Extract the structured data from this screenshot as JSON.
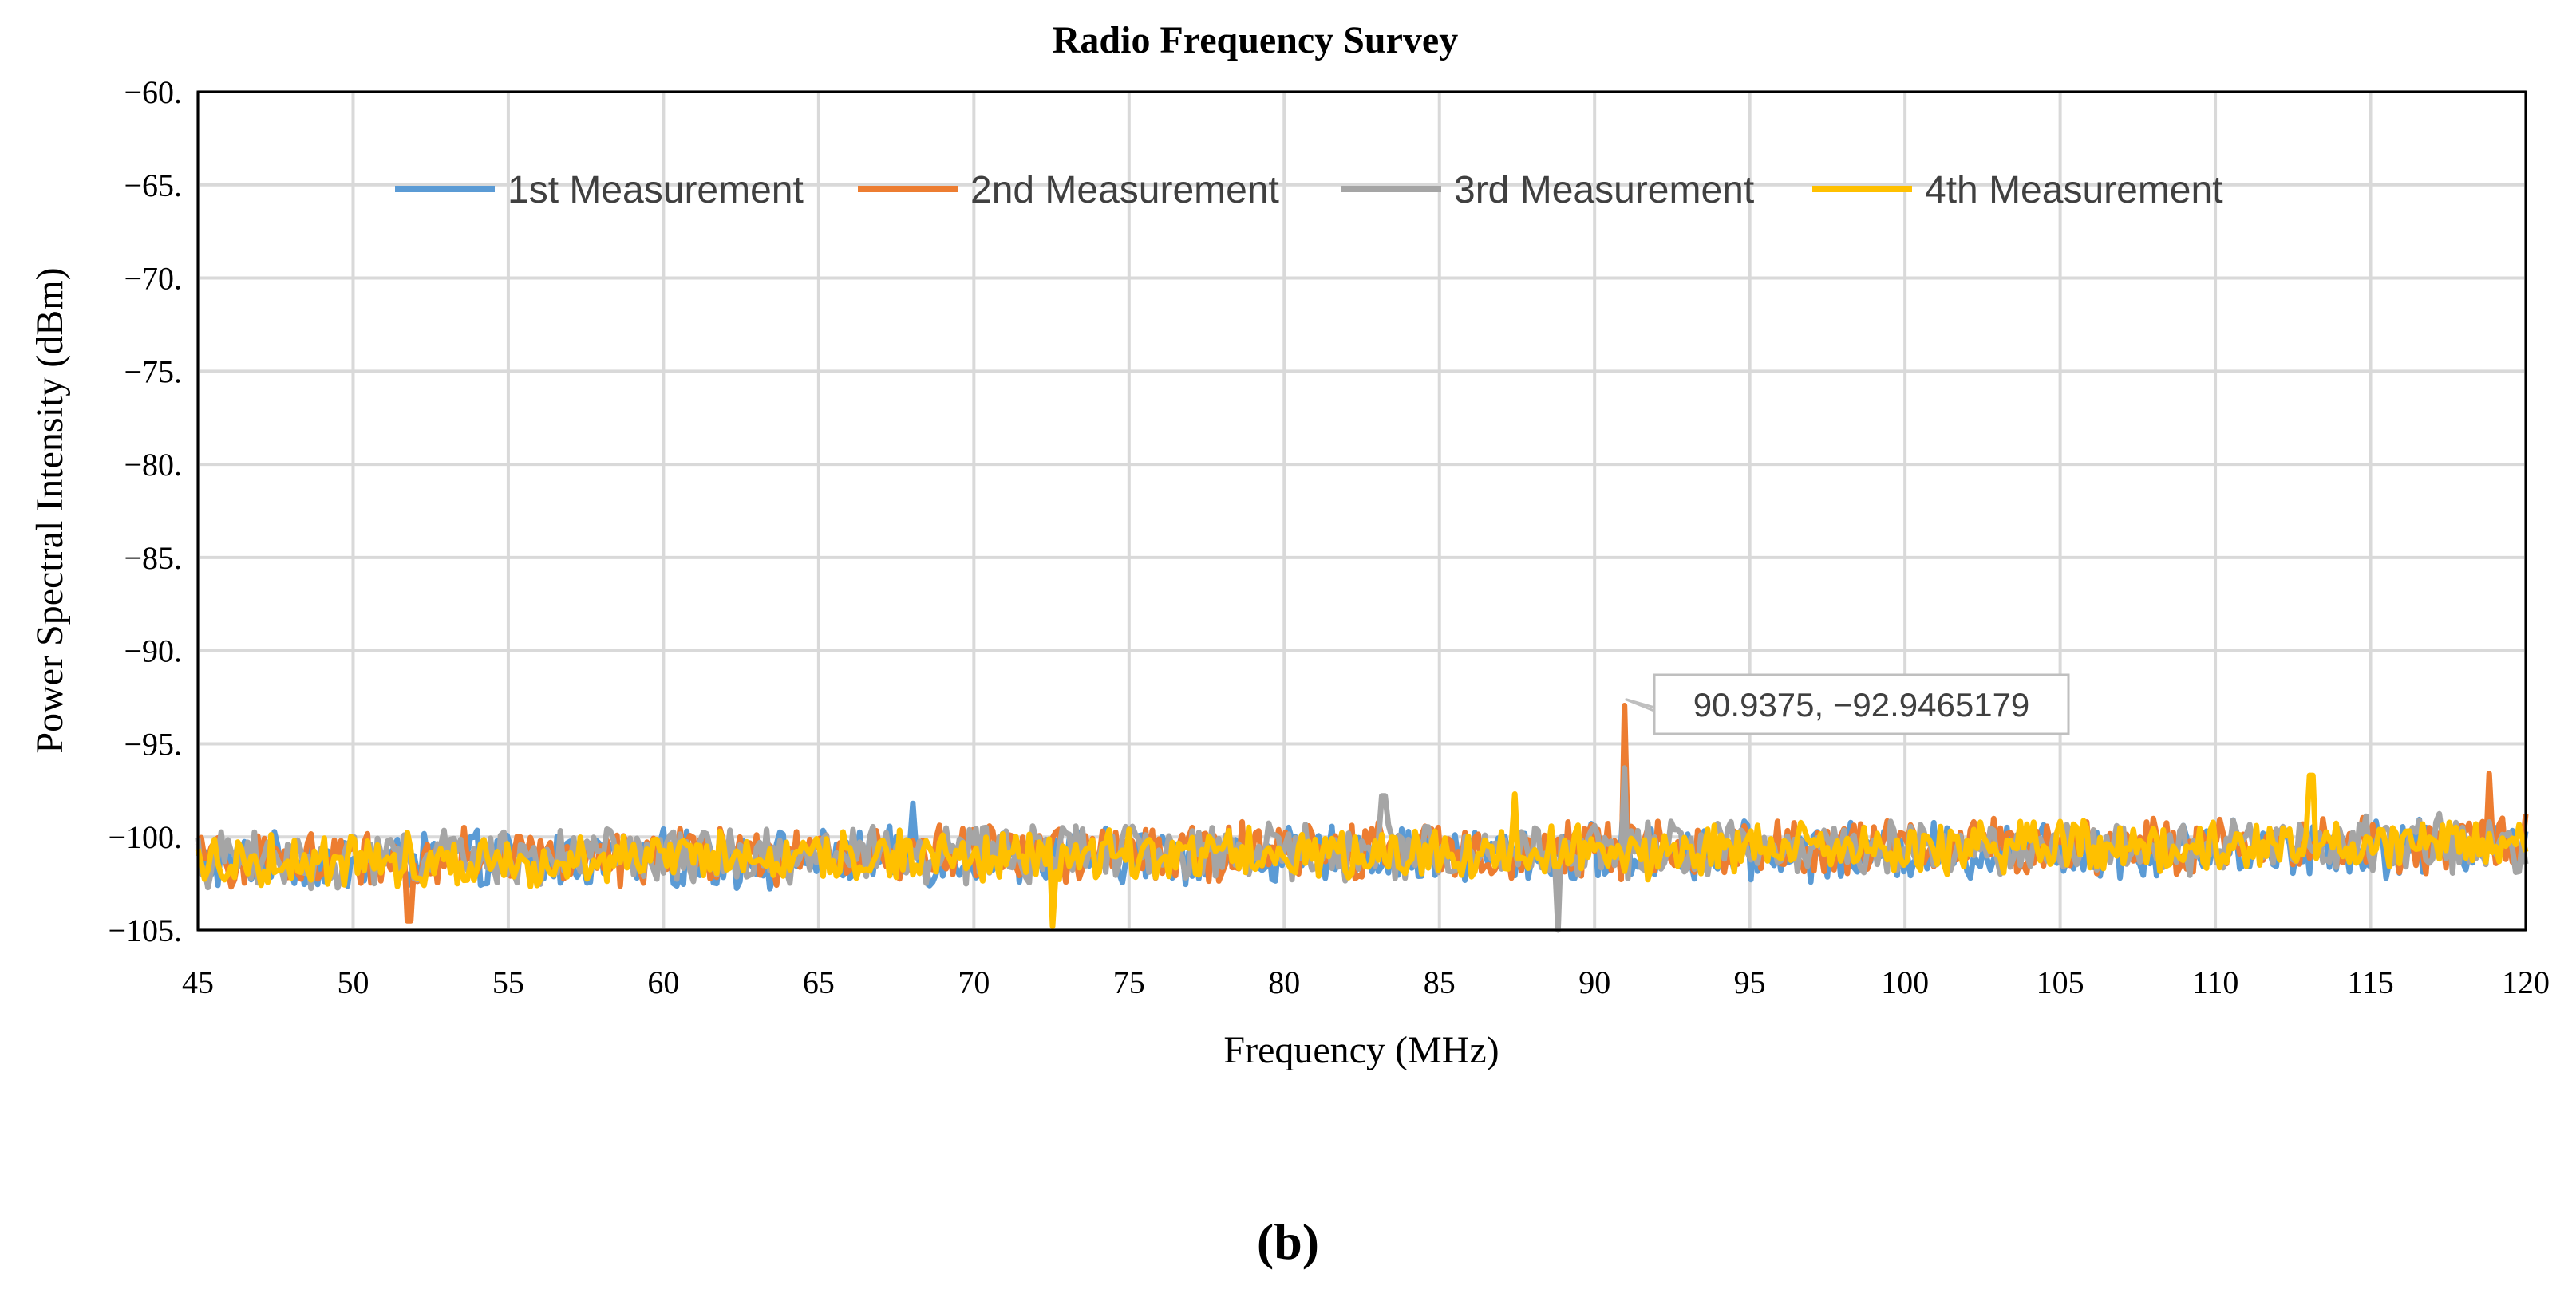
{
  "chart_data": {
    "type": "line",
    "title": "Radio Frequency Survey",
    "xlabel": "Frequency (MHz)",
    "ylabel": "Power Spectral Intensity (dBm)",
    "xlim": [
      45,
      120
    ],
    "ylim": [
      -105,
      -60
    ],
    "x_ticks": [
      45,
      50,
      55,
      60,
      65,
      70,
      75,
      80,
      85,
      90,
      95,
      100,
      105,
      110,
      115,
      120
    ],
    "y_ticks": [
      -60,
      -65,
      -70,
      -75,
      -80,
      -85,
      -90,
      -95,
      -100,
      -105
    ],
    "y_tick_labels": [
      "−60.",
      "−65.",
      "−70.",
      "−75.",
      "−80.",
      "−85.",
      "−90.",
      "−95.",
      "−100.",
      "−105."
    ],
    "grid": true,
    "legend_position": "top",
    "series": [
      {
        "name": "1st Measurement",
        "color": "#5B9BD5",
        "baseline": -101.4,
        "noise_amplitude": 1.3,
        "spikes": [
          {
            "x": 90.94,
            "y": -97.0
          },
          {
            "x": 68.0,
            "y": -98.2
          }
        ]
      },
      {
        "name": "2nd Measurement",
        "color": "#ED7D31",
        "baseline": -101.2,
        "noise_amplitude": 1.3,
        "spikes": [
          {
            "x": 90.9375,
            "y": -92.9465179
          },
          {
            "x": 118.8,
            "y": -96.6
          },
          {
            "x": 51.8,
            "y": -104.5
          }
        ]
      },
      {
        "name": "3rd Measurement",
        "color": "#A5A5A5",
        "baseline": -101.2,
        "noise_amplitude": 1.3,
        "spikes": [
          {
            "x": 88.8,
            "y": -105.0
          },
          {
            "x": 83.2,
            "y": -97.8
          },
          {
            "x": 90.94,
            "y": -96.3
          }
        ]
      },
      {
        "name": "4th Measurement",
        "color": "#FFC000",
        "baseline": -101.3,
        "noise_amplitude": 1.2,
        "spikes": [
          {
            "x": 113.1,
            "y": -96.7
          },
          {
            "x": 72.5,
            "y": -104.8
          },
          {
            "x": 87.4,
            "y": -97.7
          }
        ]
      }
    ],
    "annotation": {
      "x": 90.9375,
      "y": -92.9465179,
      "text": "90.9375, −92.9465179"
    }
  },
  "panel_label": "(b)"
}
